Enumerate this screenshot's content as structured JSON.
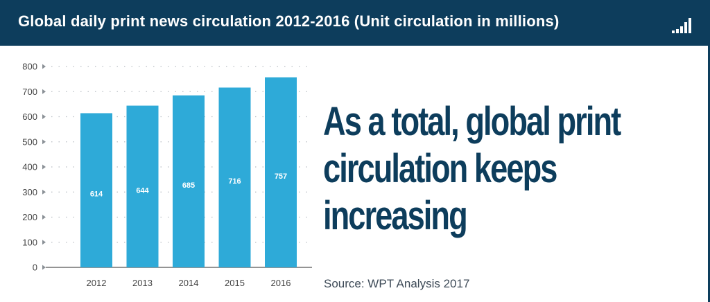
{
  "header": {
    "title": "Global daily print news circulation 2012-2016 (Unit circulation in millions)",
    "icon": "signal-bars-icon"
  },
  "headline": "As a total, global print circulation keeps increasing",
  "source": "Source: WPT Analysis 2017",
  "colors": {
    "header_bg": "#0d3d5c",
    "bar": "#2eaad8",
    "headline": "#0d3d5c",
    "axis_text": "#444444"
  },
  "chart_data": {
    "type": "bar",
    "title": "Global daily print news circulation 2012-2016 (Unit circulation in millions)",
    "categories": [
      "2012",
      "2013",
      "2014",
      "2015",
      "2016"
    ],
    "values": [
      614,
      644,
      685,
      716,
      757
    ],
    "data_labels": [
      "614",
      "644",
      "685",
      "716",
      "757"
    ],
    "yticks": [
      0,
      100,
      200,
      300,
      400,
      500,
      600,
      700,
      800
    ],
    "ylim": [
      0,
      800
    ],
    "xlabel": "",
    "ylabel": "",
    "grid": true,
    "legend": "none"
  }
}
